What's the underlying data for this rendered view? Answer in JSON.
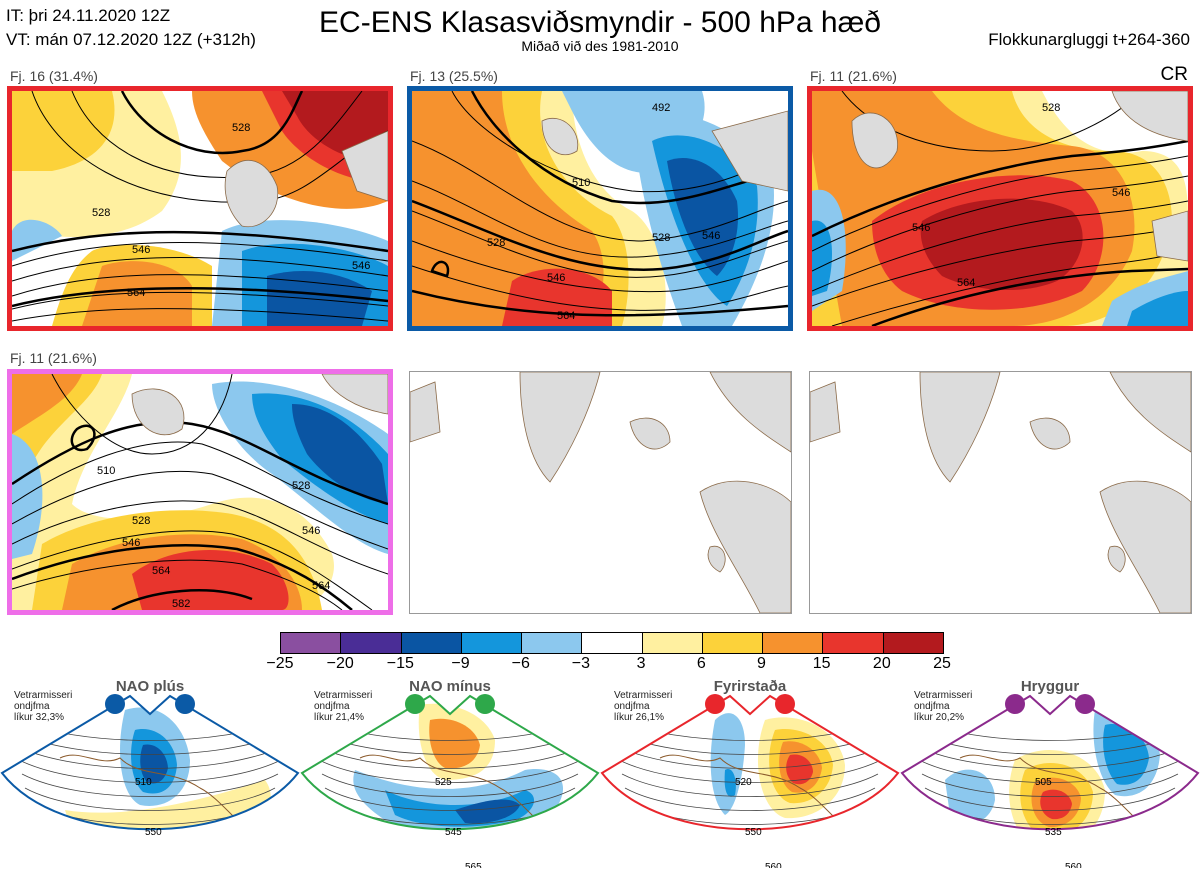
{
  "header": {
    "issued": "IT: þri 24.11.2020 12Z",
    "valid": "VT: mán 07.12.2020 12Z  (+312h)",
    "title": "EC-ENS Klasasviðsmyndir - 500 hPa hæð",
    "subtitle": "Miðað við des 1981-2010",
    "window": "Flokkunargluggi t+264-360",
    "cr": "CR"
  },
  "panels": [
    {
      "label": "Fj. 16 (31.4%)",
      "frame_color": "#e8262c",
      "regime": "Fyrirstaða",
      "contours": [
        "528",
        "546",
        "564",
        "546",
        "528"
      ]
    },
    {
      "label": "Fj. 13 (25.5%)",
      "frame_color": "#0b5aa6",
      "regime": "NAO plús",
      "contours": [
        "492",
        "510",
        "528",
        "546",
        "564",
        "528",
        "546"
      ]
    },
    {
      "label": "Fj. 11 (21.6%)",
      "frame_color": "#e8262c",
      "regime": "Fyrirstaða",
      "contours": [
        "528",
        "546",
        "564",
        "546"
      ]
    },
    {
      "label": "Fj. 11 (21.6%)",
      "frame_color": "#ee6ee8",
      "regime": "Hryggur",
      "contours": [
        "510",
        "528",
        "546",
        "564",
        "528",
        "546",
        "564",
        "582"
      ]
    }
  ],
  "colorbar": {
    "ticks": [
      "−25",
      "−20",
      "−15",
      "−9",
      "−6",
      "−3",
      "3",
      "6",
      "9",
      "15",
      "20",
      "25"
    ],
    "colors": [
      "#8a4fa0",
      "#4a2d96",
      "#0a55a3",
      "#1496dc",
      "#8cc8ee",
      "#ffffff",
      "#fff0a0",
      "#fcd23a",
      "#f6922e",
      "#e8352d",
      "#b31a1e"
    ]
  },
  "regimes": [
    {
      "name": "NAO plús",
      "note": "Vetrarmisseri\nondjfma\nlíkur 32,3%",
      "color": "#0b5aa6",
      "contours": [
        "510",
        "550"
      ]
    },
    {
      "name": "NAO mínus",
      "note": "Vetrarmisseri\nondjfma\nlíkur 21,4%",
      "color": "#2ea84a",
      "contours": [
        "525",
        "545",
        "565"
      ]
    },
    {
      "name": "Fyrirstaða",
      "note": "Vetrarmisseri\nondjfma\nlíkur 26,1%",
      "color": "#e8262c",
      "contours": [
        "520",
        "550",
        "560"
      ]
    },
    {
      "name": "Hryggur",
      "note": "Vetrarmisseri\nondjfma\nlíkur 20,2%",
      "color": "#8b2a8c",
      "contours": [
        "505",
        "535",
        "560"
      ]
    }
  ]
}
